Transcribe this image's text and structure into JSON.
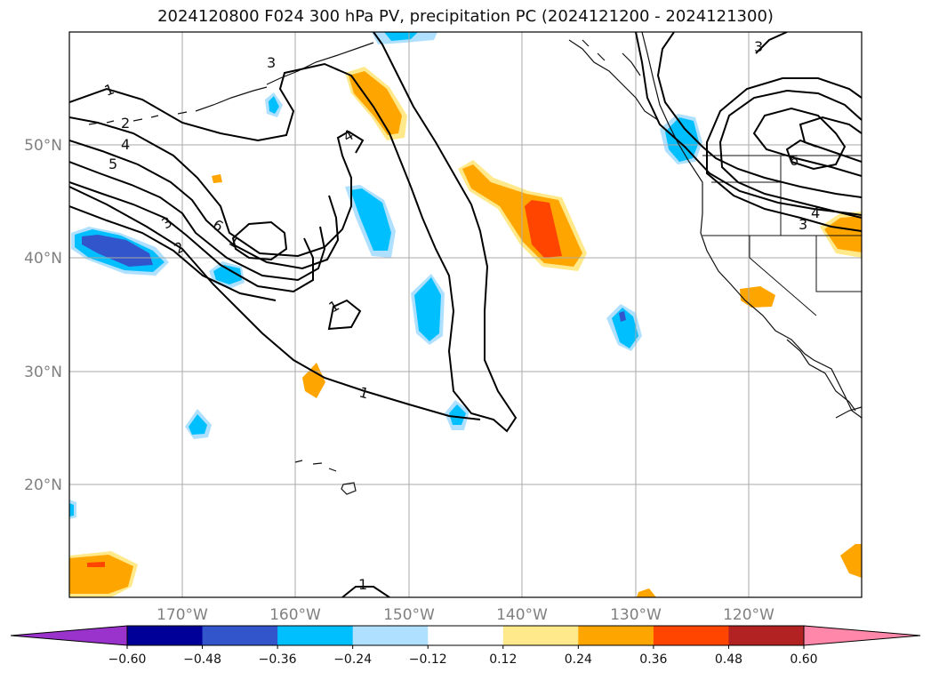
{
  "title": "2024120800 F024 300 hPa PV, precipitation PC (2024121200 - 2024121300)",
  "map": {
    "lat_labels": [
      "50°N",
      "40°N",
      "30°N",
      "20°N"
    ],
    "lon_labels": [
      "170°W",
      "160°W",
      "150°W",
      "140°W",
      "130°W",
      "120°W"
    ],
    "pv_contour_labels": [
      "1",
      "1",
      "1",
      "1",
      "1",
      "2",
      "2",
      "3",
      "3",
      "3",
      "3",
      "4",
      "4",
      "4",
      "5",
      "6",
      "6"
    ]
  },
  "colorbar": {
    "colors": [
      "#9933cc",
      "#000099",
      "#3355cc",
      "#00bfff",
      "#b0e0ff",
      "#ffffff",
      "#ffe98a",
      "#ffa500",
      "#ff4500",
      "#b22222",
      "#ff88aa"
    ],
    "ticks": [
      "−0.60",
      "−0.48",
      "−0.36",
      "−0.24",
      "−0.12",
      "0.12",
      "0.24",
      "0.36",
      "0.48",
      "0.60"
    ]
  }
}
